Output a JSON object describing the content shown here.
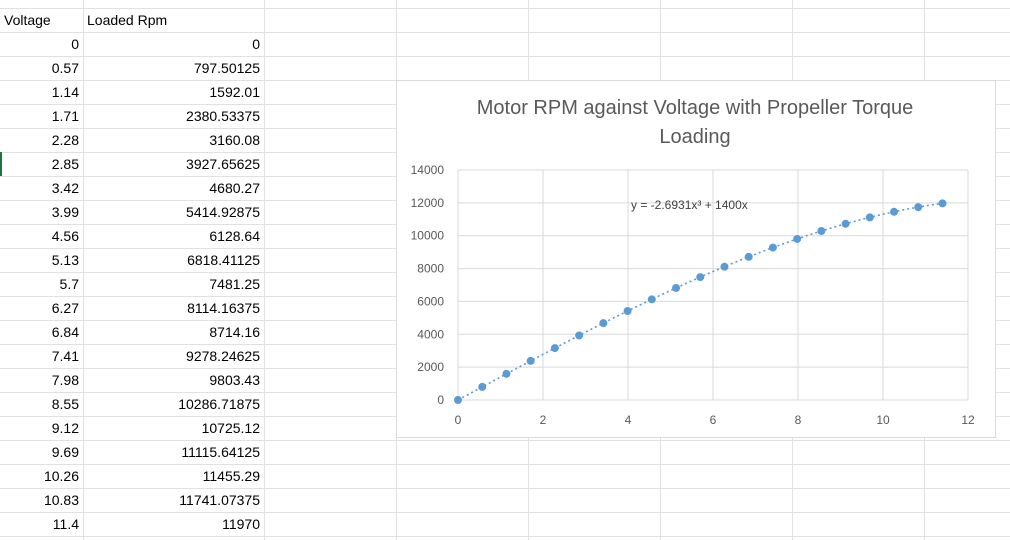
{
  "sheet": {
    "headers": [
      "Voltage",
      "Loaded Rpm"
    ],
    "rows": [
      [
        "0",
        "0"
      ],
      [
        "0.57",
        "797.50125"
      ],
      [
        "1.14",
        "1592.01"
      ],
      [
        "1.71",
        "2380.53375"
      ],
      [
        "2.28",
        "3160.08"
      ],
      [
        "2.85",
        "3927.65625"
      ],
      [
        "3.42",
        "4680.27"
      ],
      [
        "3.99",
        "5414.92875"
      ],
      [
        "4.56",
        "6128.64"
      ],
      [
        "5.13",
        "6818.41125"
      ],
      [
        "5.7",
        "7481.25"
      ],
      [
        "6.27",
        "8114.16375"
      ],
      [
        "6.84",
        "8714.16"
      ],
      [
        "7.41",
        "9278.24625"
      ],
      [
        "7.98",
        "9803.43"
      ],
      [
        "8.55",
        "10286.71875"
      ],
      [
        "9.12",
        "10725.12"
      ],
      [
        "9.69",
        "11115.64125"
      ],
      [
        "10.26",
        "11455.29"
      ],
      [
        "10.83",
        "11741.07375"
      ],
      [
        "11.4",
        "11970"
      ]
    ]
  },
  "chart_data": {
    "type": "scatter",
    "title": "Motor RPM against Voltage with Propeller Torque Loading",
    "title_lines": [
      "Motor RPM against Voltage with Propeller Torque",
      "Loading"
    ],
    "x": [
      0,
      0.57,
      1.14,
      1.71,
      2.28,
      2.85,
      3.42,
      3.99,
      4.56,
      5.13,
      5.7,
      6.27,
      6.84,
      7.41,
      7.98,
      8.55,
      9.12,
      9.69,
      10.26,
      10.83,
      11.4
    ],
    "y": [
      0,
      797.50125,
      1592.01,
      2380.53375,
      3160.08,
      3927.65625,
      4680.27,
      5414.92875,
      6128.64,
      6818.41125,
      7481.25,
      8114.16375,
      8714.16,
      9278.24625,
      9803.43,
      10286.71875,
      10725.12,
      11115.64125,
      11455.29,
      11741.07375,
      11970
    ],
    "xlim": [
      0,
      12
    ],
    "ylim": [
      0,
      14000
    ],
    "x_ticks": [
      "0",
      "2",
      "4",
      "6",
      "8",
      "10",
      "12"
    ],
    "y_ticks": [
      "0",
      "2000",
      "4000",
      "6000",
      "8000",
      "10000",
      "12000",
      "14000"
    ],
    "trendline": {
      "type": "polynomial",
      "equation": "y = -2.6931x³ + 1400x",
      "a3": -2.6931,
      "a1": 1400
    },
    "grid": true,
    "colors": {
      "marker": "#5b9bd5",
      "trendline": "#5b9bd5",
      "gridline": "#d9d9d9"
    }
  }
}
